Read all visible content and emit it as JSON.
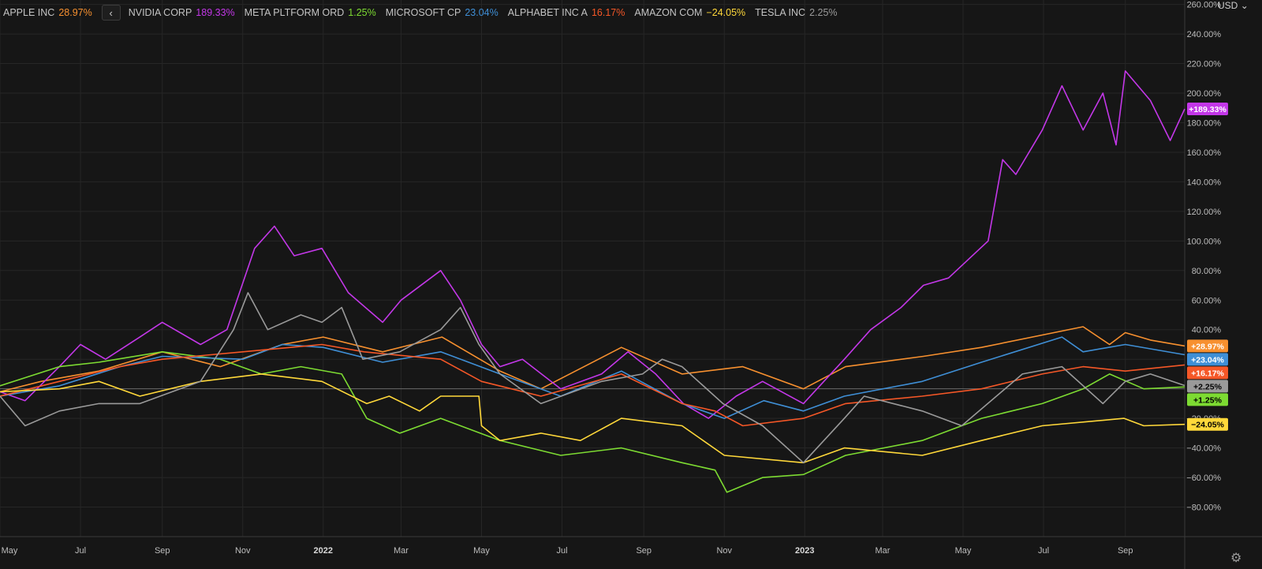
{
  "legend": {
    "back_label": "‹",
    "entries": [
      {
        "name": "APPLE INC",
        "change": "28.97%",
        "color": "#f7902f"
      },
      {
        "name": "NVIDIA CORP",
        "change": "189.33%",
        "color": "#c337e8"
      },
      {
        "name": "META PLTFORM ORD",
        "change": "1.25%",
        "color": "#7ddb32"
      },
      {
        "name": "MICROSOFT CP",
        "change": "23.04%",
        "color": "#3f8fd6"
      },
      {
        "name": "ALPHABET INC A",
        "change": "16.17%",
        "color": "#f55727"
      },
      {
        "name": "AMAZON COM",
        "change": "−24.05%",
        "color": "#ffd83a"
      },
      {
        "name": "TESLA INC",
        "change": "2.25%",
        "color": "#9a9a9a"
      }
    ]
  },
  "currency_label": "USD",
  "currency_icon": "chevron-down-icon",
  "settings_icon": "gear-icon",
  "chart_data": {
    "type": "line",
    "ylim": [
      -100,
      263
    ],
    "y_ticks": [
      -80,
      -60,
      -40,
      -20,
      20,
      40,
      60,
      80,
      100,
      120,
      140,
      160,
      180,
      200,
      220,
      240,
      260
    ],
    "y_tick_labels": [
      "−80.00%",
      "−60.00%",
      "−40.00%",
      "−20.00%",
      "20.00%",
      "40.00%",
      "60.00%",
      "80.00%",
      "100.00%",
      "120.00%",
      "140.00%",
      "160.00%",
      "180.00%",
      "200.00%",
      "220.00%",
      "240.00%",
      "260.00%"
    ],
    "x_range": [
      "2021-05-01",
      "2023-10-16"
    ],
    "x_ticks": [
      "2021-05-01",
      "2021-07-01",
      "2021-09-01",
      "2021-11-01",
      "2022-01-01",
      "2022-03-01",
      "2022-05-01",
      "2022-07-01",
      "2022-09-01",
      "2022-11-01",
      "2023-01-01",
      "2023-03-01",
      "2023-05-01",
      "2023-07-01",
      "2023-09-01"
    ],
    "x_tick_labels": [
      "May",
      "Jul",
      "Sep",
      "Nov",
      "2022",
      "Mar",
      "May",
      "Jul",
      "Sep",
      "Nov",
      "2023",
      "Mar",
      "May",
      "Jul",
      "Sep"
    ],
    "zero_line": 0,
    "series": [
      {
        "name": "APPLE INC",
        "color": "#f7902f",
        "last_label": "+28.97%",
        "points": [
          [
            "2021-05-01",
            -2
          ],
          [
            "2021-06-01",
            5
          ],
          [
            "2021-07-15",
            12
          ],
          [
            "2021-09-01",
            25
          ],
          [
            "2021-10-15",
            15
          ],
          [
            "2021-12-01",
            30
          ],
          [
            "2022-01-01",
            35
          ],
          [
            "2022-02-15",
            25
          ],
          [
            "2022-04-01",
            35
          ],
          [
            "2022-05-15",
            12
          ],
          [
            "2022-06-15",
            0
          ],
          [
            "2022-08-15",
            28
          ],
          [
            "2022-09-30",
            10
          ],
          [
            "2022-11-15",
            15
          ],
          [
            "2022-12-31",
            0
          ],
          [
            "2023-02-01",
            15
          ],
          [
            "2023-04-01",
            22
          ],
          [
            "2023-05-15",
            28
          ],
          [
            "2023-07-31",
            42
          ],
          [
            "2023-08-20",
            30
          ],
          [
            "2023-09-01",
            38
          ],
          [
            "2023-09-20",
            33
          ],
          [
            "2023-10-16",
            28.97
          ]
        ]
      },
      {
        "name": "NVIDIA CORP",
        "color": "#c337e8",
        "last_label": "+189.33%",
        "points": [
          [
            "2021-05-01",
            -2
          ],
          [
            "2021-05-20",
            -8
          ],
          [
            "2021-06-15",
            15
          ],
          [
            "2021-07-01",
            30
          ],
          [
            "2021-07-20",
            20
          ],
          [
            "2021-08-15",
            35
          ],
          [
            "2021-09-01",
            45
          ],
          [
            "2021-09-30",
            30
          ],
          [
            "2021-10-20",
            40
          ],
          [
            "2021-11-10",
            95
          ],
          [
            "2021-11-25",
            110
          ],
          [
            "2021-12-10",
            90
          ],
          [
            "2021-12-31",
            95
          ],
          [
            "2022-01-20",
            65
          ],
          [
            "2022-02-15",
            45
          ],
          [
            "2022-03-01",
            60
          ],
          [
            "2022-03-31",
            80
          ],
          [
            "2022-04-15",
            60
          ],
          [
            "2022-05-01",
            30
          ],
          [
            "2022-05-15",
            15
          ],
          [
            "2022-06-01",
            20
          ],
          [
            "2022-06-30",
            0
          ],
          [
            "2022-07-31",
            10
          ],
          [
            "2022-08-20",
            25
          ],
          [
            "2022-09-10",
            10
          ],
          [
            "2022-10-01",
            -10
          ],
          [
            "2022-10-20",
            -20
          ],
          [
            "2022-11-10",
            -5
          ],
          [
            "2022-11-30",
            5
          ],
          [
            "2022-12-31",
            -10
          ],
          [
            "2023-01-31",
            20
          ],
          [
            "2023-02-20",
            40
          ],
          [
            "2023-03-15",
            55
          ],
          [
            "2023-04-01",
            70
          ],
          [
            "2023-04-20",
            75
          ],
          [
            "2023-05-20",
            100
          ],
          [
            "2023-05-31",
            155
          ],
          [
            "2023-06-10",
            145
          ],
          [
            "2023-06-30",
            175
          ],
          [
            "2023-07-15",
            205
          ],
          [
            "2023-07-31",
            175
          ],
          [
            "2023-08-15",
            200
          ],
          [
            "2023-08-25",
            165
          ],
          [
            "2023-09-01",
            215
          ],
          [
            "2023-09-20",
            195
          ],
          [
            "2023-10-05",
            168
          ],
          [
            "2023-10-16",
            189.33
          ]
        ]
      },
      {
        "name": "META PLTFORM ORD",
        "color": "#7ddb32",
        "last_label": "+1.25%",
        "points": [
          [
            "2021-05-01",
            2
          ],
          [
            "2021-06-15",
            15
          ],
          [
            "2021-07-15",
            18
          ],
          [
            "2021-09-01",
            25
          ],
          [
            "2021-10-15",
            20
          ],
          [
            "2021-11-15",
            10
          ],
          [
            "2021-12-15",
            15
          ],
          [
            "2022-01-15",
            10
          ],
          [
            "2022-02-03",
            -20
          ],
          [
            "2022-02-28",
            -30
          ],
          [
            "2022-03-31",
            -20
          ],
          [
            "2022-05-15",
            -35
          ],
          [
            "2022-06-30",
            -45
          ],
          [
            "2022-08-15",
            -40
          ],
          [
            "2022-09-30",
            -50
          ],
          [
            "2022-10-25",
            -55
          ],
          [
            "2022-11-03",
            -70
          ],
          [
            "2022-11-30",
            -60
          ],
          [
            "2022-12-31",
            -58
          ],
          [
            "2023-02-01",
            -45
          ],
          [
            "2023-03-31",
            -35
          ],
          [
            "2023-05-15",
            -20
          ],
          [
            "2023-06-30",
            -10
          ],
          [
            "2023-07-31",
            0
          ],
          [
            "2023-08-20",
            10
          ],
          [
            "2023-09-15",
            0
          ],
          [
            "2023-10-16",
            1.25
          ]
        ]
      },
      {
        "name": "MICROSOFT CP",
        "color": "#3f8fd6",
        "last_label": "+23.04%",
        "points": [
          [
            "2021-05-01",
            -5
          ],
          [
            "2021-06-15",
            2
          ],
          [
            "2021-07-31",
            15
          ],
          [
            "2021-09-01",
            22
          ],
          [
            "2021-11-01",
            20
          ],
          [
            "2021-12-01",
            30
          ],
          [
            "2022-01-01",
            28
          ],
          [
            "2022-02-15",
            18
          ],
          [
            "2022-03-31",
            25
          ],
          [
            "2022-05-15",
            10
          ],
          [
            "2022-06-30",
            -5
          ],
          [
            "2022-08-15",
            12
          ],
          [
            "2022-09-30",
            -10
          ],
          [
            "2022-11-01",
            -20
          ],
          [
            "2022-12-01",
            -8
          ],
          [
            "2022-12-31",
            -15
          ],
          [
            "2023-01-31",
            -5
          ],
          [
            "2023-03-31",
            5
          ],
          [
            "2023-05-15",
            18
          ],
          [
            "2023-07-15",
            35
          ],
          [
            "2023-07-31",
            25
          ],
          [
            "2023-09-01",
            30
          ],
          [
            "2023-10-16",
            23.04
          ]
        ]
      },
      {
        "name": "ALPHABET INC A",
        "color": "#f55727",
        "last_label": "+16.17%",
        "points": [
          [
            "2021-05-01",
            -5
          ],
          [
            "2021-06-15",
            5
          ],
          [
            "2021-07-31",
            15
          ],
          [
            "2021-09-01",
            20
          ],
          [
            "2021-11-01",
            25
          ],
          [
            "2021-12-31",
            30
          ],
          [
            "2022-02-01",
            25
          ],
          [
            "2022-03-31",
            20
          ],
          [
            "2022-05-01",
            5
          ],
          [
            "2022-06-15",
            -5
          ],
          [
            "2022-08-15",
            10
          ],
          [
            "2022-09-30",
            -10
          ],
          [
            "2022-10-25",
            -15
          ],
          [
            "2022-11-15",
            -25
          ],
          [
            "2022-12-31",
            -20
          ],
          [
            "2023-02-01",
            -10
          ],
          [
            "2023-03-31",
            -5
          ],
          [
            "2023-05-15",
            0
          ],
          [
            "2023-06-30",
            10
          ],
          [
            "2023-07-31",
            15
          ],
          [
            "2023-09-01",
            12
          ],
          [
            "2023-10-16",
            16.17
          ]
        ]
      },
      {
        "name": "AMAZON COM",
        "color": "#ffd83a",
        "last_label": "−24.05%",
        "points": [
          [
            "2021-05-01",
            -2
          ],
          [
            "2021-06-15",
            0
          ],
          [
            "2021-07-15",
            5
          ],
          [
            "2021-08-15",
            -5
          ],
          [
            "2021-09-30",
            5
          ],
          [
            "2021-11-15",
            10
          ],
          [
            "2021-12-31",
            5
          ],
          [
            "2022-02-03",
            -10
          ],
          [
            "2022-02-20",
            -5
          ],
          [
            "2022-03-15",
            -15
          ],
          [
            "2022-03-31",
            -5
          ],
          [
            "2022-04-29",
            -5
          ],
          [
            "2022-05-01",
            -25
          ],
          [
            "2022-05-15",
            -35
          ],
          [
            "2022-06-15",
            -30
          ],
          [
            "2022-07-15",
            -35
          ],
          [
            "2022-08-15",
            -20
          ],
          [
            "2022-09-30",
            -25
          ],
          [
            "2022-11-01",
            -45
          ],
          [
            "2022-12-31",
            -50
          ],
          [
            "2023-01-31",
            -40
          ],
          [
            "2023-03-31",
            -45
          ],
          [
            "2023-05-15",
            -35
          ],
          [
            "2023-06-30",
            -25
          ],
          [
            "2023-08-31",
            -20
          ],
          [
            "2023-09-15",
            -25
          ],
          [
            "2023-10-16",
            -24.05
          ]
        ]
      },
      {
        "name": "TESLA INC",
        "color": "#9a9a9a",
        "last_label": "+2.25%",
        "points": [
          [
            "2021-05-01",
            -5
          ],
          [
            "2021-05-20",
            -25
          ],
          [
            "2021-06-15",
            -15
          ],
          [
            "2021-07-15",
            -10
          ],
          [
            "2021-08-15",
            -10
          ],
          [
            "2021-09-30",
            5
          ],
          [
            "2021-10-25",
            40
          ],
          [
            "2021-11-05",
            65
          ],
          [
            "2021-11-20",
            40
          ],
          [
            "2021-12-15",
            50
          ],
          [
            "2021-12-31",
            45
          ],
          [
            "2022-01-15",
            55
          ],
          [
            "2022-01-31",
            20
          ],
          [
            "2022-02-28",
            25
          ],
          [
            "2022-03-31",
            40
          ],
          [
            "2022-04-15",
            55
          ],
          [
            "2022-04-29",
            30
          ],
          [
            "2022-05-15",
            10
          ],
          [
            "2022-06-15",
            -10
          ],
          [
            "2022-07-31",
            5
          ],
          [
            "2022-08-31",
            10
          ],
          [
            "2022-09-15",
            20
          ],
          [
            "2022-09-30",
            15
          ],
          [
            "2022-10-31",
            -10
          ],
          [
            "2022-11-30",
            -25
          ],
          [
            "2022-12-31",
            -50
          ],
          [
            "2023-01-31",
            -20
          ],
          [
            "2023-02-15",
            -5
          ],
          [
            "2023-03-31",
            -15
          ],
          [
            "2023-04-30",
            -25
          ],
          [
            "2023-06-15",
            10
          ],
          [
            "2023-07-15",
            15
          ],
          [
            "2023-08-15",
            -10
          ],
          [
            "2023-09-01",
            5
          ],
          [
            "2023-09-20",
            10
          ],
          [
            "2023-10-16",
            2.25
          ]
        ]
      }
    ]
  }
}
